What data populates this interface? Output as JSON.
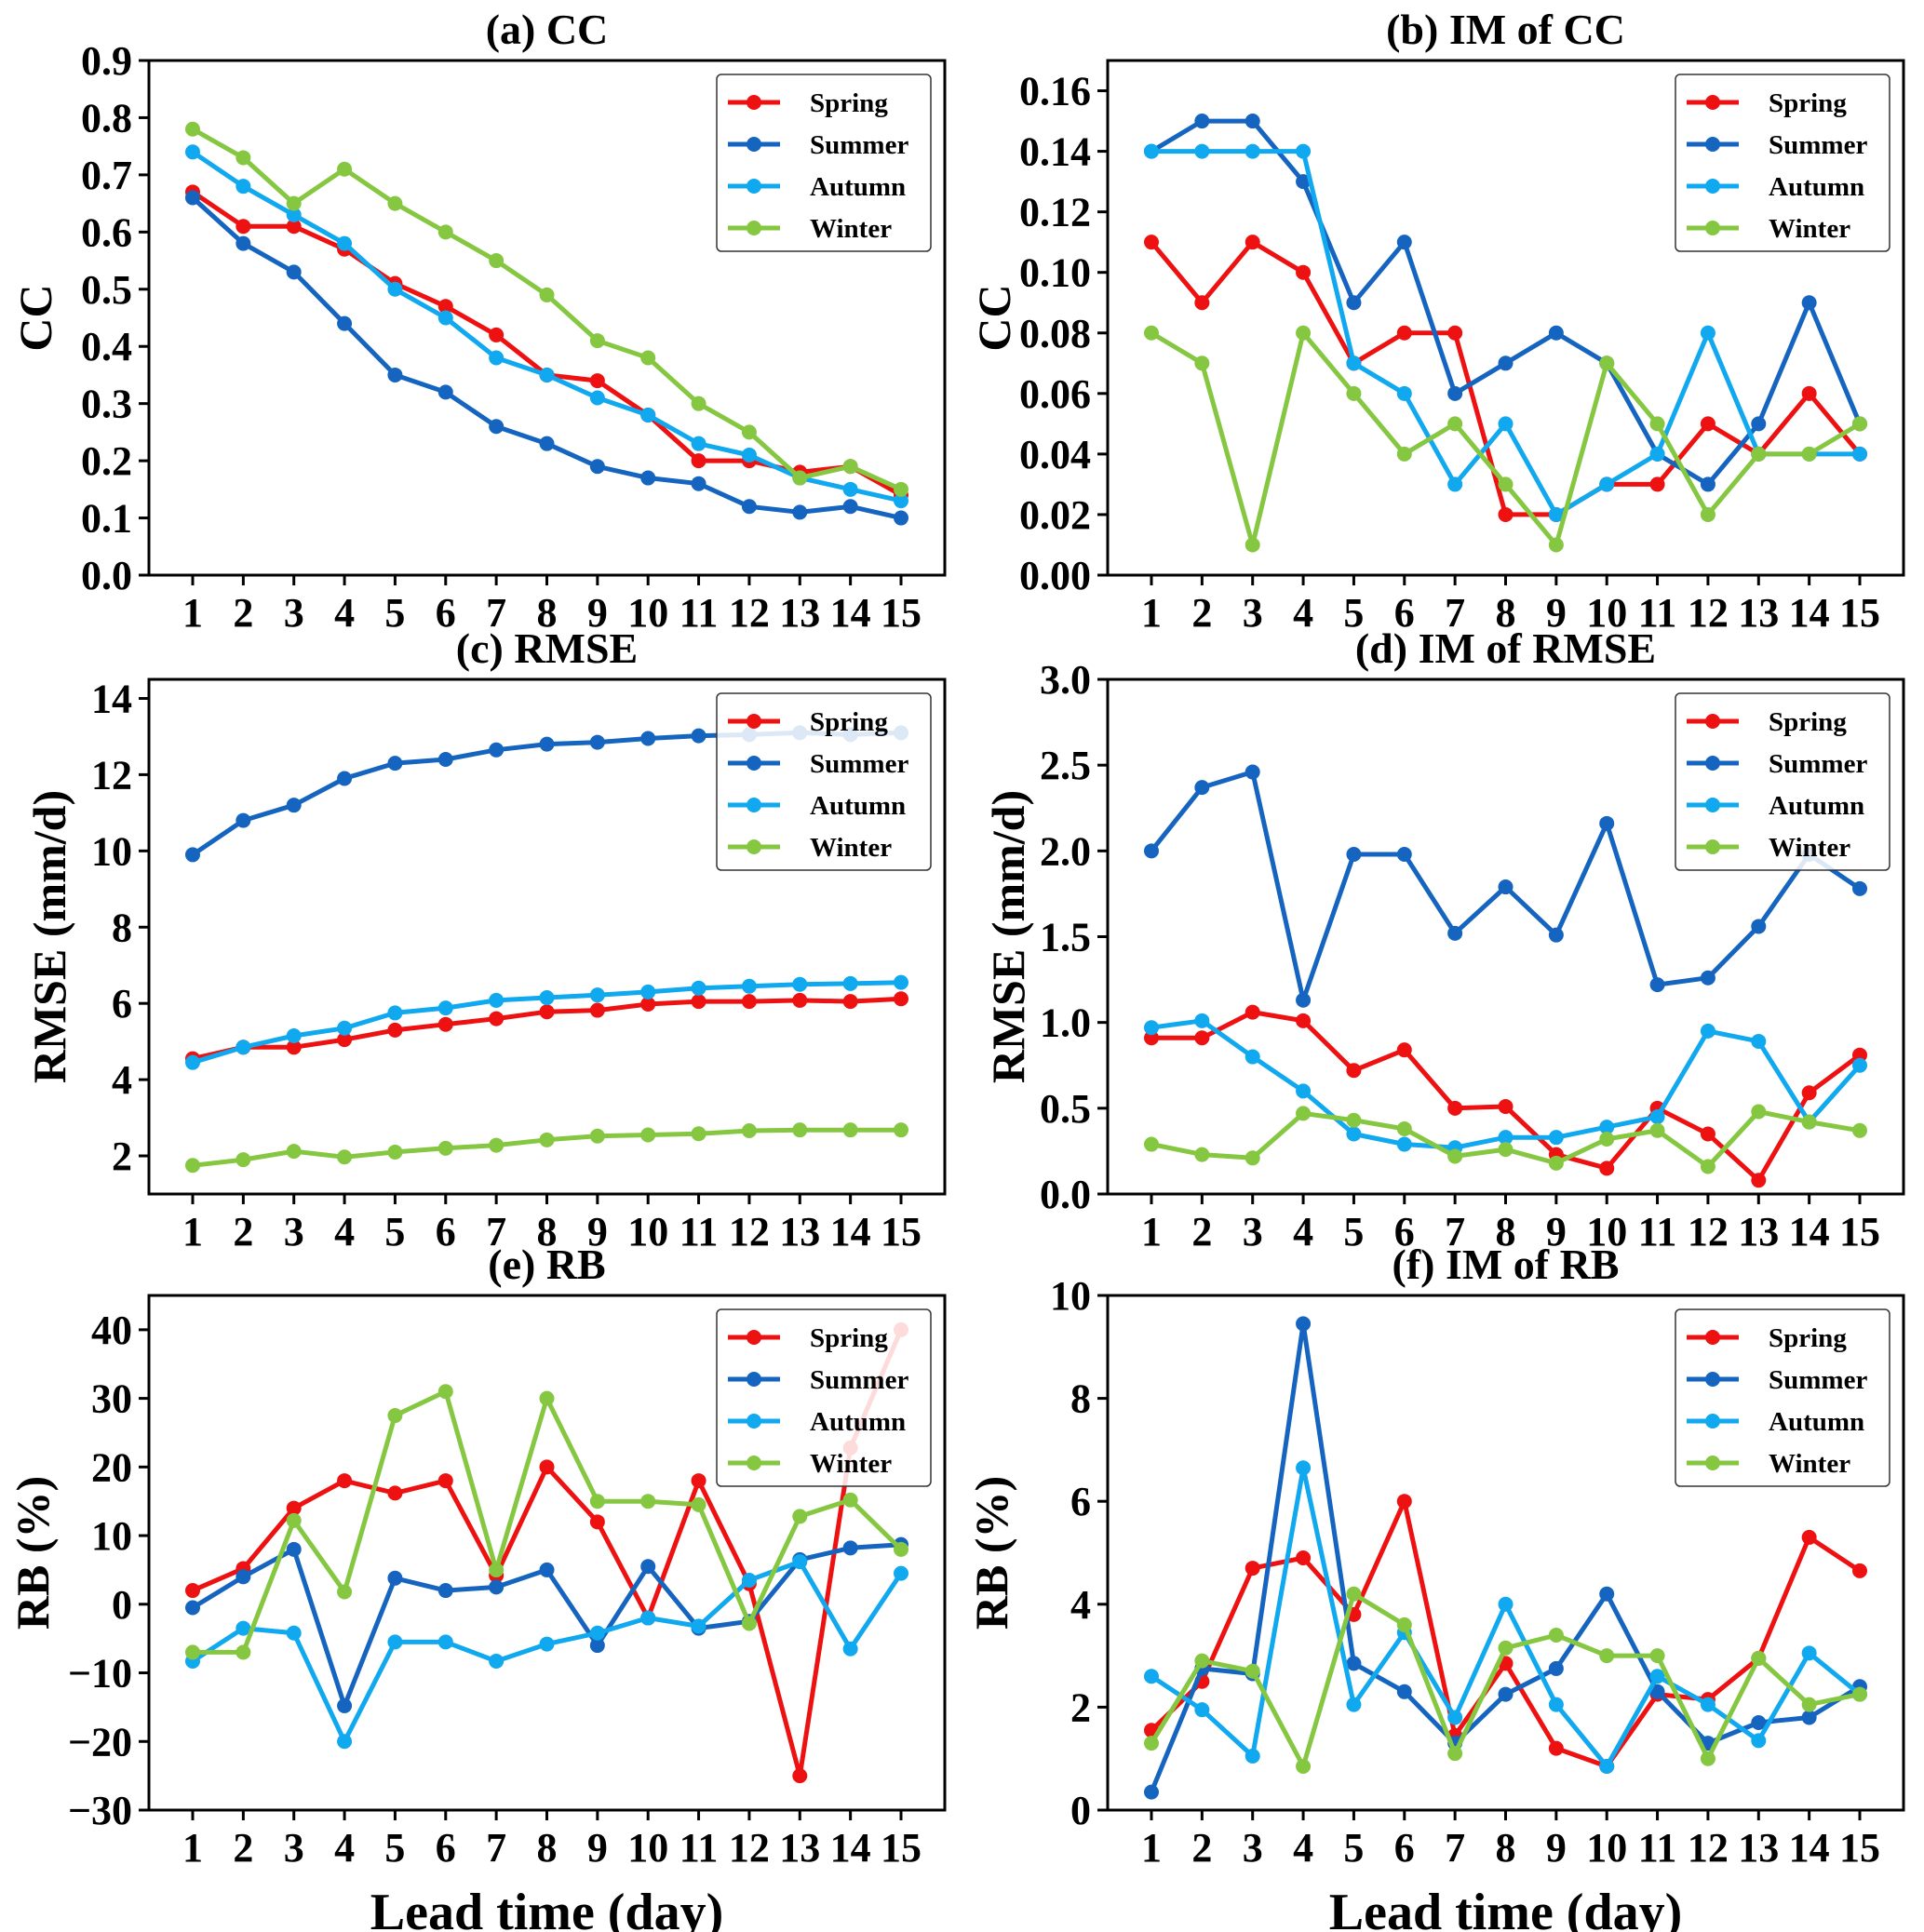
{
  "figure": {
    "colors": {
      "Spring": "#ee1111",
      "Summer": "#1565c0",
      "Autumn": "#10a8ee",
      "Winter": "#86c742"
    }
  },
  "chart_data": [
    {
      "id": "a",
      "type": "line",
      "title": "(a) CC",
      "xlabel": "",
      "ylabel": "CC",
      "x": [
        1,
        2,
        3,
        4,
        5,
        6,
        7,
        8,
        9,
        10,
        11,
        12,
        13,
        14,
        15
      ],
      "ylim": [
        0,
        0.9
      ],
      "yticks": [
        0.0,
        0.1,
        0.2,
        0.3,
        0.4,
        0.5,
        0.6,
        0.7,
        0.8,
        0.9
      ],
      "ytick_labels": [
        "0.0",
        "0.1",
        "0.2",
        "0.3",
        "0.4",
        "0.5",
        "0.6",
        "0.7",
        "0.8",
        "0.9"
      ],
      "legend": "top-right",
      "series": [
        {
          "name": "Spring",
          "values": [
            0.67,
            0.61,
            0.61,
            0.57,
            0.51,
            0.47,
            0.42,
            0.35,
            0.34,
            0.28,
            0.2,
            0.2,
            0.18,
            0.19,
            0.14
          ]
        },
        {
          "name": "Summer",
          "values": [
            0.66,
            0.58,
            0.53,
            0.44,
            0.35,
            0.32,
            0.26,
            0.23,
            0.19,
            0.17,
            0.16,
            0.12,
            0.11,
            0.12,
            0.1
          ]
        },
        {
          "name": "Autumn",
          "values": [
            0.74,
            0.68,
            0.63,
            0.58,
            0.5,
            0.45,
            0.38,
            0.35,
            0.31,
            0.28,
            0.23,
            0.21,
            0.17,
            0.15,
            0.13
          ]
        },
        {
          "name": "Winter",
          "values": [
            0.78,
            0.73,
            0.65,
            0.71,
            0.65,
            0.6,
            0.55,
            0.49,
            0.41,
            0.38,
            0.3,
            0.25,
            0.17,
            0.19,
            0.15
          ]
        }
      ]
    },
    {
      "id": "b",
      "type": "line",
      "title": "(b) IM of CC",
      "xlabel": "",
      "ylabel": "CC",
      "x": [
        1,
        2,
        3,
        4,
        5,
        6,
        7,
        8,
        9,
        10,
        11,
        12,
        13,
        14,
        15
      ],
      "ylim": [
        0,
        0.17
      ],
      "yticks": [
        0.0,
        0.02,
        0.04,
        0.06,
        0.08,
        0.1,
        0.12,
        0.14,
        0.16
      ],
      "ytick_labels": [
        "0.00",
        "0.02",
        "0.04",
        "0.06",
        "0.08",
        "0.10",
        "0.12",
        "0.14",
        "0.16"
      ],
      "legend": "top-right",
      "series": [
        {
          "name": "Spring",
          "values": [
            0.11,
            0.09,
            0.11,
            0.1,
            0.07,
            0.08,
            0.08,
            0.02,
            0.02,
            0.03,
            0.03,
            0.05,
            0.04,
            0.06,
            0.04
          ]
        },
        {
          "name": "Summer",
          "values": [
            0.14,
            0.15,
            0.15,
            0.13,
            0.09,
            0.11,
            0.06,
            0.07,
            0.08,
            0.07,
            0.04,
            0.03,
            0.05,
            0.09,
            0.05
          ]
        },
        {
          "name": "Autumn",
          "values": [
            0.14,
            0.14,
            0.14,
            0.14,
            0.07,
            0.06,
            0.03,
            0.05,
            0.02,
            0.03,
            0.04,
            0.08,
            0.04,
            0.04,
            0.04
          ]
        },
        {
          "name": "Winter",
          "values": [
            0.08,
            0.07,
            0.01,
            0.08,
            0.06,
            0.04,
            0.05,
            0.03,
            0.01,
            0.07,
            0.05,
            0.02,
            0.04,
            0.04,
            0.05
          ]
        }
      ]
    },
    {
      "id": "c",
      "type": "line",
      "title": "(c) RMSE",
      "xlabel": "",
      "ylabel": "RMSE (mm/d)",
      "x": [
        1,
        2,
        3,
        4,
        5,
        6,
        7,
        8,
        9,
        10,
        11,
        12,
        13,
        14,
        15
      ],
      "ylim": [
        1,
        14.5
      ],
      "yticks": [
        2,
        4,
        6,
        8,
        10,
        12,
        14
      ],
      "ytick_labels": [
        "2",
        "4",
        "6",
        "8",
        "10",
        "12",
        "14"
      ],
      "legend": "top-right",
      "series": [
        {
          "name": "Spring",
          "values": [
            4.55,
            4.85,
            4.85,
            5.05,
            5.3,
            5.45,
            5.6,
            5.78,
            5.82,
            5.98,
            6.05,
            6.05,
            6.08,
            6.05,
            6.12
          ]
        },
        {
          "name": "Summer",
          "values": [
            9.9,
            10.8,
            11.2,
            11.9,
            12.3,
            12.4,
            12.65,
            12.8,
            12.85,
            12.95,
            13.02,
            13.05,
            13.1,
            13.05,
            13.1
          ]
        },
        {
          "name": "Autumn",
          "values": [
            4.45,
            4.85,
            5.15,
            5.35,
            5.75,
            5.88,
            6.08,
            6.15,
            6.22,
            6.3,
            6.4,
            6.45,
            6.5,
            6.52,
            6.55
          ]
        },
        {
          "name": "Winter",
          "values": [
            1.75,
            1.9,
            2.12,
            1.97,
            2.1,
            2.2,
            2.28,
            2.42,
            2.52,
            2.55,
            2.58,
            2.66,
            2.68,
            2.68,
            2.68
          ]
        }
      ]
    },
    {
      "id": "d",
      "type": "line",
      "title": "(d) IM of RMSE",
      "xlabel": "",
      "ylabel": "RMSE (mm/d)",
      "x": [
        1,
        2,
        3,
        4,
        5,
        6,
        7,
        8,
        9,
        10,
        11,
        12,
        13,
        14,
        15
      ],
      "ylim": [
        0,
        3.0
      ],
      "yticks": [
        0.0,
        0.5,
        1.0,
        1.5,
        2.0,
        2.5,
        3.0
      ],
      "ytick_labels": [
        "0.0",
        "0.5",
        "1.0",
        "1.5",
        "2.0",
        "2.5",
        "3.0"
      ],
      "legend": "top-right",
      "series": [
        {
          "name": "Spring",
          "values": [
            0.91,
            0.91,
            1.06,
            1.01,
            0.72,
            0.84,
            0.5,
            0.51,
            0.23,
            0.15,
            0.5,
            0.35,
            0.08,
            0.59,
            0.81
          ]
        },
        {
          "name": "Summer",
          "values": [
            2.0,
            2.37,
            2.46,
            1.13,
            1.98,
            1.98,
            1.52,
            1.79,
            1.51,
            2.16,
            1.22,
            1.26,
            1.56,
            1.98,
            1.78
          ]
        },
        {
          "name": "Autumn",
          "values": [
            0.97,
            1.01,
            0.8,
            0.6,
            0.35,
            0.29,
            0.27,
            0.33,
            0.33,
            0.39,
            0.45,
            0.95,
            0.89,
            0.42,
            0.75
          ]
        },
        {
          "name": "Winter",
          "values": [
            0.29,
            0.23,
            0.21,
            0.47,
            0.43,
            0.38,
            0.22,
            0.26,
            0.18,
            0.32,
            0.37,
            0.16,
            0.48,
            0.42,
            0.37
          ]
        }
      ]
    },
    {
      "id": "e",
      "type": "line",
      "title": "(e) RB",
      "xlabel": "Lead time (day)",
      "ylabel": "RB (%)",
      "x": [
        1,
        2,
        3,
        4,
        5,
        6,
        7,
        8,
        9,
        10,
        11,
        12,
        13,
        14,
        15
      ],
      "ylim": [
        -30,
        45
      ],
      "yticks": [
        -30,
        -20,
        -10,
        0,
        10,
        20,
        30,
        40
      ],
      "ytick_labels": [
        "−30",
        "−20",
        "−10",
        "0",
        "10",
        "20",
        "30",
        "40"
      ],
      "legend": "top-right",
      "series": [
        {
          "name": "Spring",
          "values": [
            2.0,
            5.2,
            14.0,
            18.0,
            16.2,
            18.0,
            4.2,
            20.0,
            12.0,
            -2.0,
            18.0,
            3.0,
            -25.0,
            22.8,
            40.0
          ]
        },
        {
          "name": "Summer",
          "values": [
            -0.5,
            4.0,
            8.0,
            -14.8,
            3.8,
            2.0,
            2.5,
            5.0,
            -6.0,
            5.5,
            -3.5,
            -2.5,
            6.5,
            8.2,
            8.7
          ]
        },
        {
          "name": "Autumn",
          "values": [
            -8.3,
            -3.5,
            -4.2,
            -20.0,
            -5.5,
            -5.5,
            -8.3,
            -5.8,
            -4.2,
            -2.0,
            -3.2,
            3.5,
            6.2,
            -6.5,
            4.5
          ]
        },
        {
          "name": "Winter",
          "values": [
            -7.0,
            -7.0,
            12.2,
            1.8,
            27.5,
            31.0,
            5.0,
            30.0,
            15.0,
            15.0,
            14.5,
            -2.8,
            12.8,
            15.2,
            8.0
          ]
        }
      ]
    },
    {
      "id": "f",
      "type": "line",
      "title": "(f) IM of RB",
      "xlabel": "Lead time (day)",
      "ylabel": "RB (%)",
      "x": [
        1,
        2,
        3,
        4,
        5,
        6,
        7,
        8,
        9,
        10,
        11,
        12,
        13,
        14,
        15
      ],
      "ylim": [
        0,
        10
      ],
      "yticks": [
        0,
        2,
        4,
        6,
        8,
        10
      ],
      "ytick_labels": [
        "0",
        "2",
        "4",
        "6",
        "8",
        "10"
      ],
      "legend": "top-right",
      "series": [
        {
          "name": "Spring",
          "values": [
            1.55,
            2.5,
            4.7,
            4.9,
            3.8,
            6.0,
            1.45,
            2.85,
            1.2,
            0.85,
            2.25,
            2.15,
            2.95,
            5.3,
            4.65
          ]
        },
        {
          "name": "Summer",
          "values": [
            0.35,
            2.75,
            2.65,
            9.45,
            2.85,
            2.3,
            1.3,
            2.25,
            2.75,
            4.2,
            2.3,
            1.3,
            1.7,
            1.8,
            2.4
          ]
        },
        {
          "name": "Autumn",
          "values": [
            2.6,
            1.95,
            1.05,
            6.65,
            2.05,
            3.45,
            1.8,
            4.0,
            2.05,
            0.85,
            2.6,
            2.05,
            1.35,
            3.05,
            2.25
          ]
        },
        {
          "name": "Winter",
          "values": [
            1.3,
            2.9,
            2.7,
            0.85,
            4.2,
            3.6,
            1.1,
            3.15,
            3.4,
            3.0,
            3.0,
            1.0,
            2.95,
            2.05,
            2.25
          ]
        }
      ]
    }
  ]
}
